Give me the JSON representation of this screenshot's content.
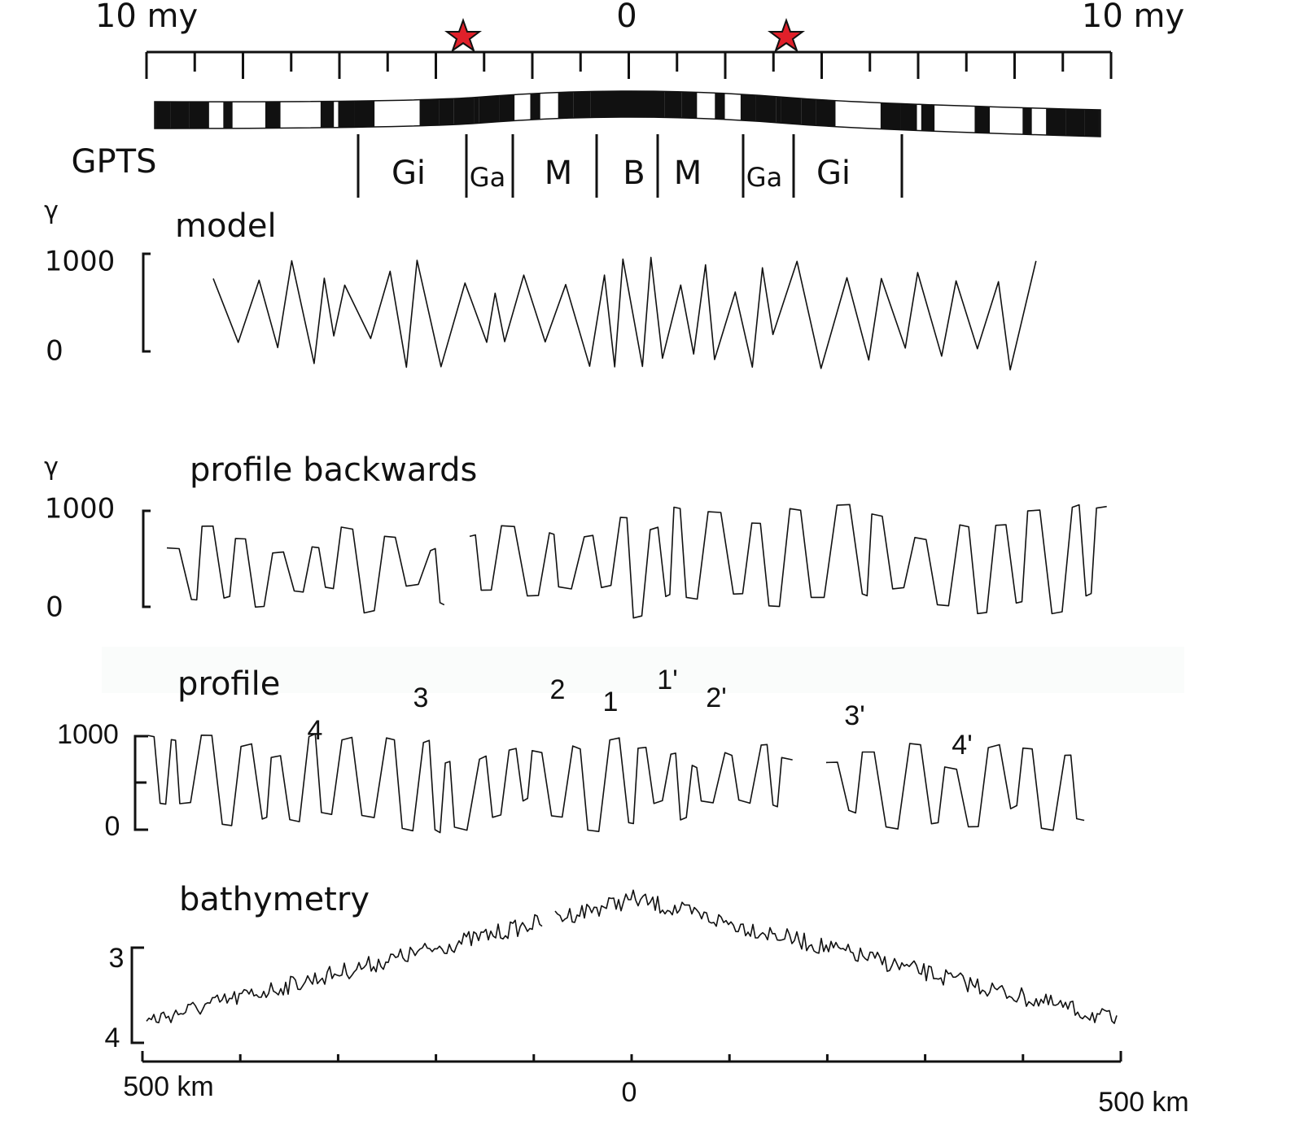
{
  "time_axis": {
    "left": "10 my",
    "center": "0",
    "right": "10 my"
  },
  "polarity": {
    "label": "GPTS",
    "chrons": [
      "Gi",
      "Ga",
      "M",
      "B",
      "M",
      "Ga",
      "Gi"
    ]
  },
  "panels": [
    {
      "unit": "γ",
      "title": "model",
      "top_tick": "1000",
      "bottom_tick": "0"
    },
    {
      "unit": "γ",
      "title": "profile backwards",
      "top_tick": "1000",
      "bottom_tick": "0"
    },
    {
      "title": "profile",
      "top_tick": "1000",
      "bottom_tick": "0",
      "anomalies": [
        "4",
        "3",
        "2",
        "1",
        "1'",
        "2'",
        "3'",
        "4'"
      ]
    },
    {
      "title": "bathymetry",
      "top_tick": "3",
      "bottom_tick": "4"
    }
  ],
  "distance_axis": {
    "left": "500 km",
    "center": "0",
    "right": "500 km"
  }
}
